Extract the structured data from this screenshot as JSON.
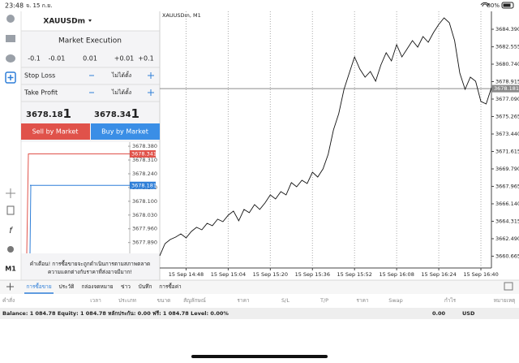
{
  "status_bar": {
    "time": "23:48",
    "date": "จ. 15 ก.ย.",
    "battery": "80%"
  },
  "sidebar": {
    "timeframe": "M1"
  },
  "order_panel": {
    "symbol": "XAUUSDm",
    "execution": "Market Execution",
    "volume_steps": [
      "-0.1",
      "-0.01",
      "0.01",
      "+0.01",
      "+0.1"
    ],
    "stop_loss": {
      "label": "Stop Loss",
      "value": "ไม่ได้ตั้ง"
    },
    "take_profit": {
      "label": "Take Profit",
      "value": "ไม่ได้ตั้ง"
    },
    "bid": {
      "main": "3678.18",
      "sup": "1"
    },
    "ask": {
      "main": "3678.34",
      "sup": "1"
    },
    "sell_button": "Sell by Market",
    "buy_button": "Buy by Market",
    "warning": [
      "คำเตือน! การซื้อขายจะถูกดำเนินการตามสภาพตลาด",
      "ความแตกต่างกับราคาที่ส่งอาจมีมาก!"
    ]
  },
  "mini_chart": {
    "ylim": [
      3677.835,
      3678.401
    ],
    "yticks": [
      {
        "value": 3678.38,
        "label": "3678.380"
      },
      {
        "value": 3678.31,
        "label": "3678.310"
      },
      {
        "value": 3678.24,
        "label": "3678.240"
      },
      {
        "value": 3678.17,
        "label": "3678.170"
      },
      {
        "value": 3678.1,
        "label": "3678.100"
      },
      {
        "value": 3678.03,
        "label": "3678.030"
      },
      {
        "value": 3677.96,
        "label": "3677.960"
      },
      {
        "value": 3677.89,
        "label": "3677.890"
      }
    ],
    "ask": 3678.341,
    "bid": 3678.181,
    "ask_color": "#e0524a",
    "bid_color": "#2f7fd8"
  },
  "chart_data": {
    "type": "line",
    "title": "XAUUSDm, M1",
    "color": "#111111",
    "values": [
      3660.71,
      3661.98,
      3662.41,
      3662.66,
      3663.0,
      3662.58,
      3663.25,
      3663.68,
      3663.42,
      3664.1,
      3663.85,
      3664.53,
      3664.27,
      3664.95,
      3665.38,
      3664.36,
      3665.55,
      3665.21,
      3666.06,
      3665.55,
      3666.23,
      3667.07,
      3666.65,
      3667.41,
      3667.07,
      3668.35,
      3667.92,
      3668.6,
      3668.26,
      3669.45,
      3668.94,
      3669.79,
      3671.32,
      3673.86,
      3675.56,
      3678.11,
      3679.81,
      3681.5,
      3680.23,
      3679.38,
      3679.98,
      3678.96,
      3680.66,
      3681.93,
      3681.08,
      3682.78,
      3681.5,
      3682.35,
      3683.2,
      3682.52,
      3683.63,
      3683.03,
      3684.05,
      3684.9,
      3685.58,
      3685.07,
      3683.2,
      3679.81,
      3678.11,
      3679.38,
      3678.96,
      3676.84,
      3676.58,
      3678.28
    ],
    "xlim": [
      0,
      63
    ],
    "xticks": [
      {
        "value": 5,
        "label": "15 Sep 14:48"
      },
      {
        "value": 13,
        "label": "15 Sep 15:04"
      },
      {
        "value": 21,
        "label": "15 Sep 15:20"
      },
      {
        "value": 29,
        "label": "15 Sep 15:36"
      },
      {
        "value": 37,
        "label": "15 Sep 15:52"
      },
      {
        "value": 45,
        "label": "15 Sep 16:08"
      },
      {
        "value": 53,
        "label": "15 Sep 16:24"
      },
      {
        "value": 61,
        "label": "15 Sep 16:40"
      }
    ],
    "ylim": [
      3659.43,
      3686.26
    ],
    "yticks": [
      {
        "value": 3684.39,
        "label": "3684.390"
      },
      3682.555,
      {
        "value": 3680.74,
        "label": "3680.740"
      },
      3678.915,
      {
        "value": 3677.09,
        "label": "3677.090"
      },
      3675.265,
      {
        "value": 3673.44,
        "label": "3673.440"
      },
      3671.615,
      {
        "value": 3669.79,
        "label": "3669.790"
      },
      3667.965,
      {
        "value": 3666.14,
        "label": "3666.140"
      },
      3664.315,
      {
        "value": 3662.49,
        "label": "3662.490"
      },
      3660.665
    ],
    "price_line": 3678.181,
    "price_color": "#8a8a8a",
    "x_grid": true
  },
  "toolbox": {
    "tabs": [
      "การซื้อขาย",
      "ประวัติ",
      "กล่องจดหมาย",
      "ข่าว",
      "บันทึก",
      "การซื้อค่า"
    ],
    "columns": [
      "คำสั่ง",
      "เวลา",
      "ประเภท",
      "ขนาด",
      "สัญลักษณ์",
      "ราคา",
      "S/L",
      "T/P",
      "ราคา",
      "Swap",
      "กำไร",
      "หมายเหตุ"
    ],
    "balance": "Balance: 1 084.78 Equity: 1 084.78 หลักประกัน: 0.00 ฟรี: 1 084.78 Level: 0.00%",
    "total": "0.00",
    "currency": "USD"
  }
}
